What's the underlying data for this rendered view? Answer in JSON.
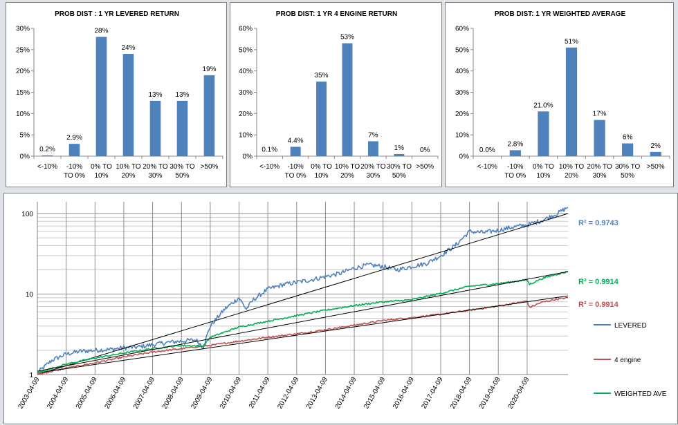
{
  "chart_data": [
    {
      "type": "bar",
      "title": "PROB DIST : 1 YR LEVERED RETURN",
      "categories": [
        [
          "<-10%"
        ],
        [
          "-10%",
          "TO 0%"
        ],
        [
          "0% TO",
          "10%"
        ],
        [
          "10% TO",
          "20%"
        ],
        [
          "20% TO",
          "30%"
        ],
        [
          "30% TO",
          "50%"
        ],
        [
          ">50%"
        ]
      ],
      "values": [
        0.2,
        2.9,
        28,
        24,
        13,
        13,
        19
      ],
      "data_labels": [
        "0.2%",
        "2.9%",
        "28%",
        "24%",
        "13%",
        "13%",
        "19%"
      ],
      "ylim": [
        0,
        30
      ],
      "yticks": [
        0,
        5,
        10,
        15,
        20,
        25,
        30
      ],
      "ytick_labels": [
        "0%",
        "5%",
        "10%",
        "15%",
        "20%",
        "25%",
        "30%"
      ],
      "color": "#4f81bd"
    },
    {
      "type": "bar",
      "title": "PROB DIST:  1 YR 4 ENGINE RETURN",
      "categories": [
        [
          "<-10%"
        ],
        [
          "-10%",
          "TO 0%"
        ],
        [
          "0% TO",
          "10%"
        ],
        [
          "10% TO",
          "20%"
        ],
        [
          "20% TO",
          "30%"
        ],
        [
          "30% TO",
          "50%"
        ],
        [
          ">50%"
        ]
      ],
      "values": [
        0.1,
        4.4,
        35,
        53,
        7,
        1,
        0
      ],
      "data_labels": [
        "0.1%",
        "4.4%",
        "35%",
        "53%",
        "7%",
        "1%",
        "0%"
      ],
      "ylim": [
        0,
        60
      ],
      "yticks": [
        0,
        10,
        20,
        30,
        40,
        50,
        60
      ],
      "ytick_labels": [
        "0%",
        "10%",
        "20%",
        "30%",
        "40%",
        "50%",
        "60%"
      ],
      "color": "#4f81bd"
    },
    {
      "type": "bar",
      "title": "PROB DIST:  1 YR WEIGHTED AVERAGE",
      "categories": [
        [
          "<-10%"
        ],
        [
          "-10%",
          "TO 0%"
        ],
        [
          "0% TO",
          "10%"
        ],
        [
          "10% TO",
          "20%"
        ],
        [
          "20% TO",
          "30%"
        ],
        [
          "30% TO",
          "50%"
        ],
        [
          ">50%"
        ]
      ],
      "values": [
        0.0,
        2.8,
        21.0,
        51,
        17,
        6,
        2
      ],
      "data_labels": [
        "0.0%",
        "2.8%",
        "21.0%",
        "51%",
        "17%",
        "6%",
        "2%"
      ],
      "ylim": [
        0,
        60
      ],
      "yticks": [
        0,
        10,
        20,
        30,
        40,
        50,
        60
      ],
      "ytick_labels": [
        "0%",
        "10%",
        "20%",
        "30%",
        "40%",
        "50%",
        "60%"
      ],
      "color": "#4f81bd"
    },
    {
      "type": "line",
      "yscale": "log",
      "ylim": [
        1,
        140
      ],
      "yticks": [
        1,
        10,
        100
      ],
      "ytick_labels": [
        "1",
        "10",
        "100"
      ],
      "xlim": [
        "2003-04-09",
        "2021-09-09"
      ],
      "xticks": [
        "2003-04-09",
        "2004-04-09",
        "2005-04-09",
        "2006-04-09",
        "2007-04-09",
        "2008-04-09",
        "2009-04-09",
        "2010-04-09",
        "2011-04-09",
        "2012-04-09",
        "2013-04-09",
        "2014-04-09",
        "2015-04-09",
        "2016-04-09",
        "2017-04-09",
        "2018-04-09",
        "2019-04-09",
        "2020-04-09"
      ],
      "grid": true,
      "legend_position": "right",
      "series": [
        {
          "name": "LEVERED",
          "color": "#4f81bd",
          "r2_label": "R² = 0.9743",
          "points": [
            [
              "2003-04-09",
              1.05
            ],
            [
              "2003-10-09",
              1.5
            ],
            [
              "2004-04-09",
              1.8
            ],
            [
              "2004-10-09",
              1.95
            ],
            [
              "2005-04-09",
              2.0
            ],
            [
              "2005-10-09",
              2.05
            ],
            [
              "2006-04-09",
              2.15
            ],
            [
              "2006-10-09",
              2.2
            ],
            [
              "2007-04-09",
              2.35
            ],
            [
              "2007-10-09",
              2.5
            ],
            [
              "2008-04-09",
              2.6
            ],
            [
              "2008-10-09",
              2.7
            ],
            [
              "2009-01-09",
              2.2
            ],
            [
              "2009-04-09",
              4.0
            ],
            [
              "2009-10-09",
              6.5
            ],
            [
              "2010-04-09",
              9.0
            ],
            [
              "2010-07-09",
              6.5
            ],
            [
              "2010-10-09",
              8.5
            ],
            [
              "2011-04-09",
              11.5
            ],
            [
              "2011-10-09",
              13.0
            ],
            [
              "2012-04-09",
              14.0
            ],
            [
              "2012-10-09",
              15.0
            ],
            [
              "2013-04-09",
              16.5
            ],
            [
              "2013-10-09",
              18.0
            ],
            [
              "2014-04-09",
              21.0
            ],
            [
              "2014-10-09",
              23.0
            ],
            [
              "2015-04-09",
              22.0
            ],
            [
              "2015-10-09",
              20.0
            ],
            [
              "2016-04-09",
              22.0
            ],
            [
              "2016-10-09",
              24.0
            ],
            [
              "2017-04-09",
              30.0
            ],
            [
              "2017-10-09",
              40.0
            ],
            [
              "2018-04-09",
              60.0
            ],
            [
              "2018-10-09",
              58.0
            ],
            [
              "2019-04-09",
              62.0
            ],
            [
              "2019-10-09",
              68.0
            ],
            [
              "2020-04-09",
              72.0
            ],
            [
              "2020-10-09",
              82.0
            ],
            [
              "2021-04-09",
              98.0
            ],
            [
              "2021-09-09",
              120.0
            ]
          ],
          "trend": [
            [
              "2003-04-09",
              1.0
            ],
            [
              "2021-09-09",
              100.0
            ]
          ]
        },
        {
          "name": "4 engine",
          "color": "#c0504d",
          "r2_label": "R² = 0.9914",
          "points": [
            [
              "2003-04-09",
              1.0
            ],
            [
              "2004-04-09",
              1.2
            ],
            [
              "2005-04-09",
              1.4
            ],
            [
              "2006-04-09",
              1.65
            ],
            [
              "2007-04-09",
              1.9
            ],
            [
              "2008-04-09",
              2.1
            ],
            [
              "2009-04-09",
              2.3
            ],
            [
              "2010-04-09",
              2.6
            ],
            [
              "2011-04-09",
              2.9
            ],
            [
              "2012-04-09",
              3.2
            ],
            [
              "2013-04-09",
              3.6
            ],
            [
              "2014-04-09",
              4.1
            ],
            [
              "2015-04-09",
              4.7
            ],
            [
              "2016-04-09",
              5.1
            ],
            [
              "2017-04-09",
              5.6
            ],
            [
              "2018-04-09",
              6.3
            ],
            [
              "2019-04-09",
              7.1
            ],
            [
              "2019-10-09",
              7.6
            ],
            [
              "2020-04-09",
              8.2
            ],
            [
              "2020-05-09",
              6.8
            ],
            [
              "2020-10-09",
              7.9
            ],
            [
              "2021-04-09",
              8.6
            ],
            [
              "2021-09-09",
              9.0
            ]
          ],
          "trend": [
            [
              "2003-04-09",
              1.05
            ],
            [
              "2021-09-09",
              9.5
            ]
          ]
        },
        {
          "name": "WEIGHTED AVE",
          "color": "#00b050",
          "r2_label": "R² = 0.9914",
          "points": [
            [
              "2003-04-09",
              1.05
            ],
            [
              "2004-04-09",
              1.35
            ],
            [
              "2005-04-09",
              1.6
            ],
            [
              "2006-04-09",
              1.85
            ],
            [
              "2007-04-09",
              2.1
            ],
            [
              "2008-04-09",
              2.3
            ],
            [
              "2009-01-09",
              2.25
            ],
            [
              "2009-04-09",
              2.9
            ],
            [
              "2010-04-09",
              3.9
            ],
            [
              "2011-04-09",
              4.6
            ],
            [
              "2012-04-09",
              5.4
            ],
            [
              "2013-04-09",
              6.3
            ],
            [
              "2014-04-09",
              7.2
            ],
            [
              "2015-04-09",
              8.0
            ],
            [
              "2016-04-09",
              8.5
            ],
            [
              "2017-04-09",
              10.2
            ],
            [
              "2018-04-09",
              12.5
            ],
            [
              "2019-04-09",
              13.5
            ],
            [
              "2020-04-09",
              15.0
            ],
            [
              "2020-05-09",
              13.2
            ],
            [
              "2020-10-09",
              15.5
            ],
            [
              "2021-04-09",
              17.5
            ],
            [
              "2021-09-09",
              19.0
            ]
          ],
          "trend": [
            [
              "2003-04-09",
              1.1
            ],
            [
              "2021-09-09",
              19.0
            ]
          ]
        }
      ]
    }
  ]
}
